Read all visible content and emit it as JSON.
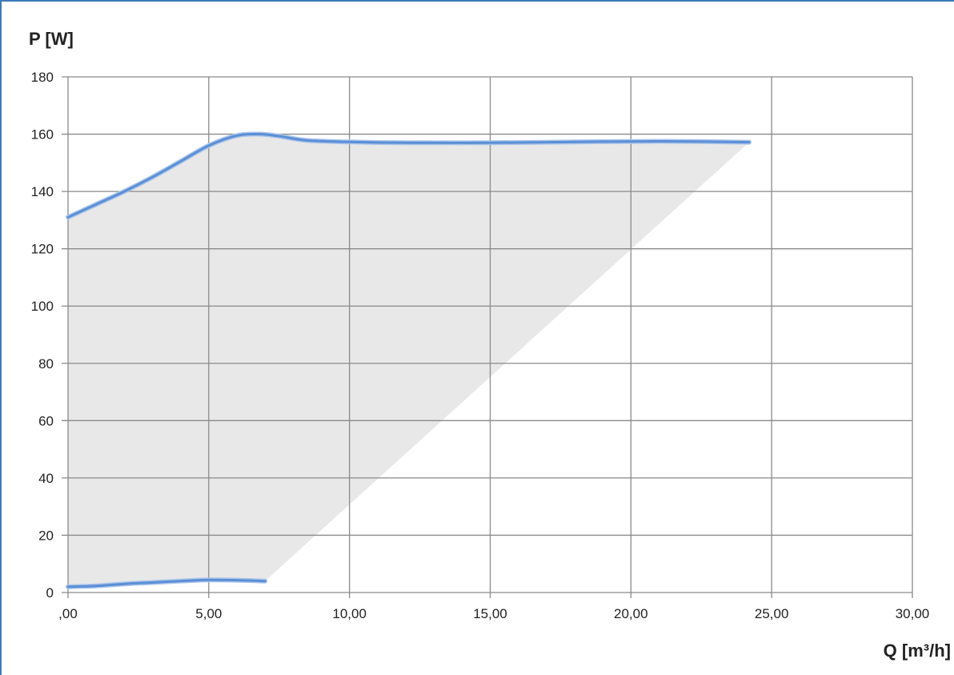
{
  "chart_data": {
    "type": "line",
    "ylabel": "P [W]",
    "xlabel": "Q [m³/h]",
    "xlim": [
      0,
      30
    ],
    "ylim": [
      0,
      180
    ],
    "x_ticks": [
      0,
      5,
      10,
      15,
      20,
      25,
      30
    ],
    "x_tick_labels": [
      ",00",
      "5,00",
      "10,00",
      "15,00",
      "20,00",
      "25,00",
      "30,00"
    ],
    "y_ticks": [
      0,
      20,
      40,
      60,
      80,
      100,
      120,
      140,
      160,
      180
    ],
    "y_tick_labels": [
      "0",
      "20",
      "40",
      "60",
      "80",
      "100",
      "120",
      "140",
      "160",
      "180"
    ],
    "grid": true,
    "legend": "none",
    "series": [
      {
        "role": "max-curve",
        "color": "#5b8fd6",
        "points": [
          [
            0,
            131
          ],
          [
            1,
            135.5
          ],
          [
            2,
            140
          ],
          [
            3,
            145
          ],
          [
            4,
            150.5
          ],
          [
            5,
            156
          ],
          [
            6,
            159.5
          ],
          [
            6.8,
            160
          ],
          [
            7.5,
            159.3
          ],
          [
            8.5,
            157.8
          ],
          [
            10,
            157.3
          ],
          [
            12,
            157
          ],
          [
            15,
            157
          ],
          [
            18,
            157.3
          ],
          [
            21,
            157.5
          ],
          [
            24.2,
            157.2
          ]
        ]
      },
      {
        "role": "min-curve",
        "color": "#5b8fd6",
        "points": [
          [
            0,
            2
          ],
          [
            1,
            2.3
          ],
          [
            2,
            3
          ],
          [
            3,
            3.5
          ],
          [
            4,
            4
          ],
          [
            5,
            4.4
          ],
          [
            6,
            4.3
          ],
          [
            7,
            4
          ]
        ]
      }
    ],
    "fill_region": {
      "color": "#e8e8e8",
      "boundary": [
        [
          0,
          131
        ],
        [
          1,
          135.5
        ],
        [
          2,
          140
        ],
        [
          3,
          145
        ],
        [
          4,
          150.5
        ],
        [
          5,
          156
        ],
        [
          6,
          159.5
        ],
        [
          6.8,
          160
        ],
        [
          7.5,
          159.3
        ],
        [
          8.5,
          157.8
        ],
        [
          10,
          157.3
        ],
        [
          12,
          157
        ],
        [
          15,
          157
        ],
        [
          18,
          157.3
        ],
        [
          21,
          157.5
        ],
        [
          24.2,
          157.2
        ],
        [
          7,
          4
        ],
        [
          6,
          4.3
        ],
        [
          5,
          4.4
        ],
        [
          4,
          4
        ],
        [
          3,
          3.5
        ],
        [
          2,
          3
        ],
        [
          1,
          2.3
        ],
        [
          0,
          2
        ]
      ]
    }
  }
}
